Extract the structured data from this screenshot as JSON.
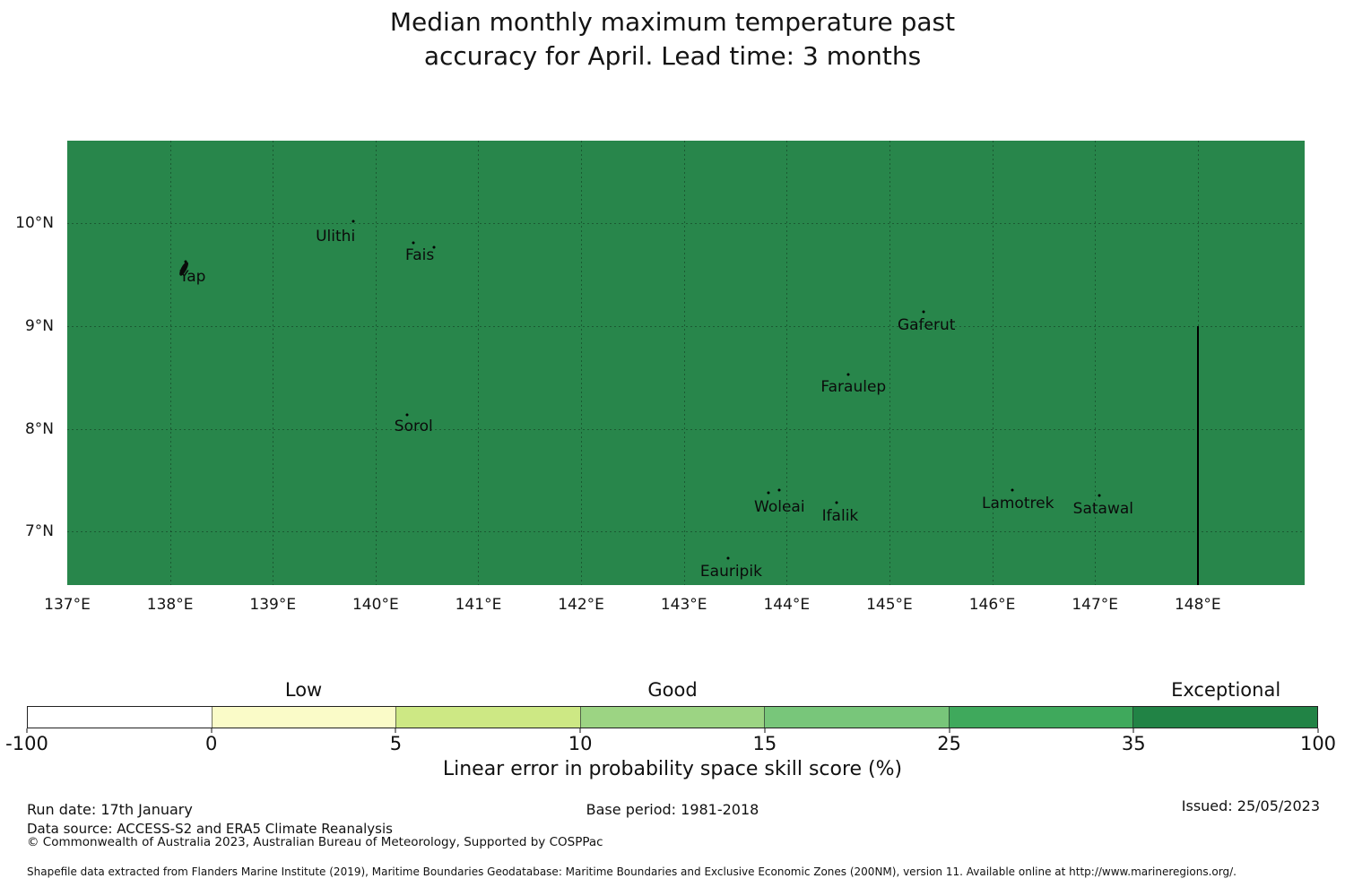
{
  "title": {
    "line1": "Median monthly maximum temperature past",
    "line2": "accuracy for April. Lead time: 3 months"
  },
  "chart_data": {
    "type": "heatmap",
    "subtype": "filled-eez-map",
    "title": "Median monthly maximum temperature past accuracy for April. Lead time: 3 months",
    "region_fill": {
      "color": "#28864B",
      "value_bin": "35 to 100",
      "skill_category": "Exceptional"
    },
    "grid": true,
    "x_axis": {
      "range": [
        137,
        149.04
      ],
      "ticks": [
        {
          "lon": 137,
          "label": "137°E"
        },
        {
          "lon": 138,
          "label": "138°E"
        },
        {
          "lon": 139,
          "label": "139°E"
        },
        {
          "lon": 140,
          "label": "140°E"
        },
        {
          "lon": 141,
          "label": "141°E"
        },
        {
          "lon": 142,
          "label": "142°E"
        },
        {
          "lon": 143,
          "label": "143°E"
        },
        {
          "lon": 144,
          "label": "144°E"
        },
        {
          "lon": 145,
          "label": "145°E"
        },
        {
          "lon": 146,
          "label": "146°E"
        },
        {
          "lon": 147,
          "label": "147°E"
        },
        {
          "lon": 148,
          "label": "148°E"
        }
      ]
    },
    "y_axis": {
      "range": [
        6.48,
        10.805
      ],
      "ticks": [
        {
          "lat": 10,
          "label": "10°N"
        },
        {
          "lat": 9,
          "label": "9°N"
        },
        {
          "lat": 8,
          "label": "8°N"
        },
        {
          "lat": 7,
          "label": "7°N"
        }
      ]
    },
    "islands": [
      {
        "name": "Yap",
        "label_pos": [
          138.22,
          9.48
        ],
        "dots": [
          [
            138.15,
            9.63
          ]
        ],
        "shape_at": [
          138.13,
          9.555
        ]
      },
      {
        "name": "Ulithi",
        "label_pos": [
          139.61,
          9.87
        ],
        "dots": [
          [
            139.78,
            10.02
          ]
        ]
      },
      {
        "name": "Fais",
        "label_pos": [
          140.43,
          9.69
        ],
        "dots": [
          [
            140.37,
            9.81
          ],
          [
            140.57,
            9.77
          ]
        ]
      },
      {
        "name": "Sorol",
        "label_pos": [
          140.37,
          8.02
        ],
        "dots": [
          [
            140.31,
            8.14
          ]
        ]
      },
      {
        "name": "Gaferut",
        "label_pos": [
          145.36,
          9.01
        ],
        "dots": [
          [
            145.33,
            9.14
          ]
        ]
      },
      {
        "name": "Faraulep",
        "label_pos": [
          144.65,
          8.41
        ],
        "dots": [
          [
            144.6,
            8.53
          ]
        ]
      },
      {
        "name": "Woleai",
        "label_pos": [
          143.93,
          7.24
        ],
        "dots": [
          [
            143.82,
            7.38
          ],
          [
            143.93,
            7.4
          ]
        ]
      },
      {
        "name": "Ifalik",
        "label_pos": [
          144.52,
          7.15
        ],
        "dots": [
          [
            144.49,
            7.28
          ]
        ]
      },
      {
        "name": "Lamotrek",
        "label_pos": [
          146.25,
          7.27
        ],
        "dots": [
          [
            146.2,
            7.4
          ]
        ]
      },
      {
        "name": "Satawal",
        "label_pos": [
          147.08,
          7.22
        ],
        "dots": [
          [
            147.04,
            7.35
          ]
        ]
      },
      {
        "name": "Eauripik",
        "label_pos": [
          143.46,
          6.61
        ],
        "dots": [
          [
            143.43,
            6.74
          ]
        ]
      }
    ],
    "boundary_line": {
      "lon": 148,
      "lat_top": 9.0,
      "lat_bottom": 6.48,
      "color": "#000000"
    },
    "colorbar": {
      "axis_label": "Linear error in probability space skill score (%)",
      "tick_labels": [
        "-100",
        "0",
        "5",
        "10",
        "15",
        "25",
        "35",
        "100"
      ],
      "segments": [
        {
          "range": "-100 to 0",
          "color": "#FFFFFF"
        },
        {
          "range": "0 to 5",
          "color": "#FAFBC8"
        },
        {
          "range": "5 to 10",
          "color": "#CDE884"
        },
        {
          "range": "10 to 15",
          "color": "#9CD483"
        },
        {
          "range": "15 to 25",
          "color": "#78C67A"
        },
        {
          "range": "25 to 35",
          "color": "#3FA95C"
        },
        {
          "range": "35 to 100",
          "color": "#218345"
        }
      ],
      "category_labels": [
        {
          "text": "Low",
          "segment_index": 1
        },
        {
          "text": "Good",
          "segment_index": 3
        },
        {
          "text": "Exceptional",
          "segment_index": 6
        }
      ]
    }
  },
  "footer": {
    "run_date": "Run date: 17th January",
    "base_period": "Base period: 1981-2018",
    "issued": "Issued: 25/05/2023",
    "data_source": "Data source: ACCESS-S2 and ERA5 Climate Reanalysis",
    "copyright": "© Commonwealth of Australia 2023, Australian Bureau of Meteorology, Supported by COSPPac",
    "shapefile_note": "Shapefile data extracted from Flanders Marine Institute (2019), Maritime Boundaries Geodatabase: Maritime Boundaries and Exclusive Economic Zones (200NM), version 11. Available online at http://www.marineregions.org/."
  }
}
